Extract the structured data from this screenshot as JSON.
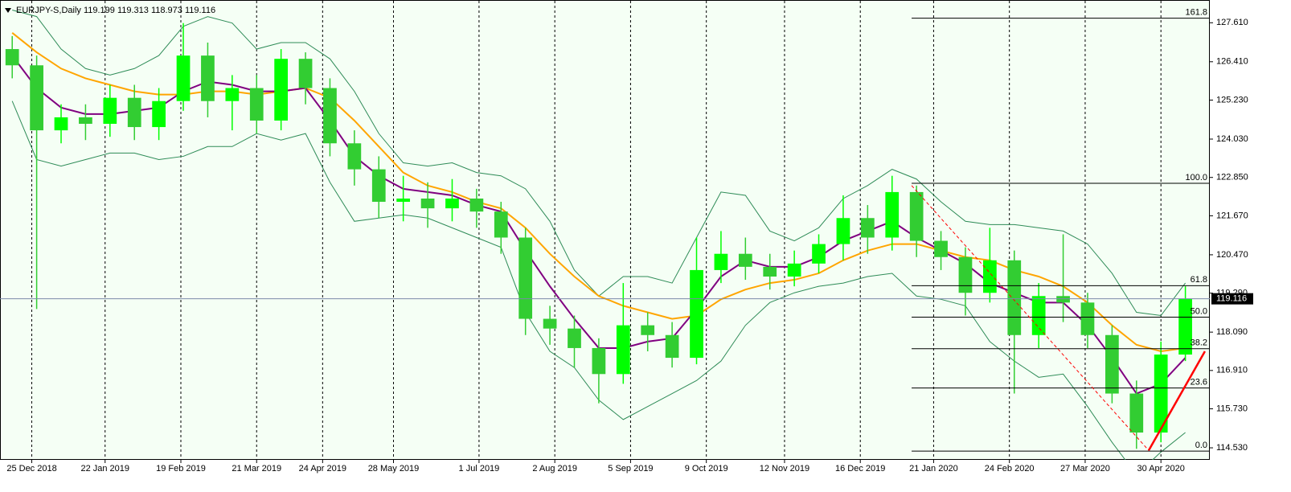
{
  "chart_data": {
    "type": "candlestick",
    "title": "EURJPY-S,Daily  119.199 119.313 118.973 119.116",
    "open": [
      126.8,
      126.3,
      124.3,
      124.7,
      124.5,
      125.3,
      124.4,
      125.2,
      126.6,
      125.2,
      125.6,
      124.6,
      126.5,
      125.6,
      123.9,
      123.1,
      122.1,
      122.2,
      121.9,
      122.2,
      121.8,
      121.0,
      118.5,
      118.2,
      117.6,
      116.8,
      118.3,
      118.0,
      117.3,
      120.0,
      120.5,
      120.1,
      119.8,
      120.2,
      120.8,
      121.6,
      121.0,
      122.4,
      120.9,
      120.4,
      119.3,
      120.3,
      118.0,
      119.2,
      119.0,
      118.0,
      116.2,
      115.0,
      117.4
    ],
    "high": [
      127.2,
      126.6,
      125.1,
      125.1,
      125.7,
      125.7,
      125.6,
      127.6,
      127.0,
      126.0,
      126.0,
      126.8,
      126.7,
      125.9,
      124.3,
      123.5,
      122.9,
      122.7,
      122.8,
      122.5,
      122.1,
      121.3,
      118.9,
      118.6,
      117.9,
      119.6,
      118.7,
      118.4,
      121.0,
      121.2,
      121.0,
      120.5,
      120.6,
      121.1,
      122.3,
      122.0,
      122.9,
      122.6,
      121.2,
      120.7,
      121.3,
      120.6,
      119.6,
      121.1,
      119.3,
      118.3,
      116.6,
      117.8,
      119.5
    ],
    "low": [
      125.9,
      118.8,
      123.9,
      124.0,
      124.1,
      124.0,
      124.0,
      124.9,
      124.7,
      124.3,
      124.2,
      124.3,
      125.1,
      123.5,
      122.6,
      121.6,
      121.5,
      121.3,
      121.5,
      121.3,
      120.5,
      118.0,
      117.7,
      117.0,
      115.9,
      116.5,
      117.5,
      117.0,
      117.1,
      119.6,
      119.7,
      119.4,
      119.5,
      119.9,
      120.3,
      120.5,
      120.6,
      120.4,
      120.0,
      118.6,
      119.0,
      116.2,
      117.6,
      118.4,
      117.6,
      115.9,
      114.5,
      114.7,
      117.2
    ],
    "close": [
      126.3,
      124.3,
      124.7,
      124.5,
      125.3,
      124.4,
      125.2,
      126.6,
      125.2,
      125.6,
      124.6,
      126.5,
      125.6,
      123.9,
      123.1,
      122.1,
      122.2,
      121.9,
      122.2,
      121.8,
      121.0,
      118.5,
      118.2,
      117.6,
      116.8,
      118.3,
      118.0,
      117.3,
      120.0,
      120.5,
      120.1,
      119.8,
      120.2,
      120.8,
      121.6,
      121.0,
      122.4,
      120.9,
      120.4,
      119.3,
      120.3,
      118.0,
      119.2,
      119.0,
      118.0,
      116.2,
      115.0,
      117.4,
      119.116
    ],
    "up_color": "#00ff00",
    "down_color": "#32cd32",
    "indicators": [
      {
        "color": "#2e8b57",
        "values": [
          128.0,
          127.8,
          126.8,
          126.2,
          126.0,
          126.2,
          126.6,
          127.5,
          127.8,
          127.6,
          126.8,
          127.0,
          127.0,
          126.5,
          125.5,
          124.2,
          123.3,
          123.2,
          123.3,
          123.0,
          122.9,
          122.5,
          121.5,
          120.0,
          119.2,
          119.8,
          119.8,
          119.6,
          121.0,
          122.4,
          122.3,
          121.2,
          120.9,
          121.3,
          122.2,
          122.6,
          123.1,
          122.8,
          122.1,
          121.5,
          121.4,
          121.4,
          121.3,
          121.2,
          120.8,
          119.9,
          118.7,
          118.6,
          119.6
        ]
      },
      {
        "color": "#2e8b57",
        "values": [
          125.2,
          123.4,
          123.2,
          123.4,
          123.6,
          123.6,
          123.4,
          123.5,
          123.8,
          123.8,
          124.2,
          124.0,
          124.2,
          122.7,
          121.5,
          121.6,
          121.7,
          121.6,
          121.3,
          121.0,
          120.7,
          118.7,
          117.5,
          117.0,
          116.0,
          115.4,
          115.8,
          116.2,
          116.6,
          117.2,
          118.3,
          119.0,
          119.3,
          119.5,
          119.6,
          119.8,
          119.9,
          119.2,
          119.1,
          118.9,
          117.8,
          117.2,
          116.7,
          116.8,
          115.8,
          114.7,
          113.7,
          114.4,
          115.0
        ]
      },
      {
        "color": "#ffa500",
        "values": [
          127.3,
          126.7,
          126.2,
          125.9,
          125.7,
          125.5,
          125.4,
          125.4,
          125.5,
          125.5,
          125.4,
          125.5,
          125.6,
          125.3,
          124.6,
          123.8,
          123.0,
          122.6,
          122.4,
          122.1,
          121.9,
          121.3,
          120.5,
          119.8,
          119.2,
          118.9,
          118.7,
          118.5,
          118.6,
          119.1,
          119.4,
          119.6,
          119.7,
          119.9,
          120.3,
          120.6,
          120.8,
          120.8,
          120.6,
          120.4,
          120.3,
          120.0,
          119.8,
          119.5,
          119.0,
          118.3,
          117.7,
          117.5,
          117.6
        ]
      },
      {
        "color": "#800080",
        "values": [
          126.6,
          125.6,
          125.0,
          124.8,
          124.8,
          124.9,
          125.0,
          125.5,
          125.8,
          125.7,
          125.5,
          125.5,
          125.6,
          124.6,
          123.5,
          122.9,
          122.5,
          122.4,
          122.3,
          122.0,
          121.8,
          120.6,
          119.5,
          118.5,
          117.6,
          117.6,
          117.8,
          117.9,
          118.8,
          119.8,
          120.3,
          120.1,
          120.1,
          120.4,
          120.9,
          121.2,
          121.5,
          121.0,
          120.6,
          120.2,
          119.6,
          119.3,
          119.0,
          119.0,
          118.3,
          117.3,
          116.2,
          116.5,
          117.3
        ]
      }
    ],
    "xlim": [
      -0.5,
      49
    ],
    "xticks": [
      {
        "value": 0.8,
        "label": "25 Dec 2018"
      },
      {
        "value": 3.8,
        "label": "22 Jan 2019"
      },
      {
        "value": 6.9,
        "label": "19 Feb 2019"
      },
      {
        "value": 10.0,
        "label": "21 Mar 2019"
      },
      {
        "value": 12.7,
        "label": "24 Apr 2019"
      },
      {
        "value": 15.6,
        "label": "28 May 2019"
      },
      {
        "value": 19.1,
        "label": "1 Jul 2019"
      },
      {
        "value": 22.2,
        "label": "2 Aug 2019"
      },
      {
        "value": 25.3,
        "label": "5 Sep 2019"
      },
      {
        "value": 28.4,
        "label": "9 Oct 2019"
      },
      {
        "value": 31.6,
        "label": "12 Nov 2019"
      },
      {
        "value": 34.7,
        "label": "16 Dec 2019"
      },
      {
        "value": 37.7,
        "label": "21 Jan 2020"
      },
      {
        "value": 40.8,
        "label": "24 Feb 2020"
      },
      {
        "value": 43.9,
        "label": "27 Mar 2020"
      },
      {
        "value": 47.0,
        "label": "30 Apr 2020"
      }
    ],
    "ylim": [
      114.16,
      128.31
    ],
    "yticks": [
      {
        "value": 127.61,
        "label": "127.610"
      },
      {
        "value": 126.41,
        "label": "126.410"
      },
      {
        "value": 125.23,
        "label": "125.230"
      },
      {
        "value": 124.03,
        "label": "124.030"
      },
      {
        "value": 122.85,
        "label": "122.850"
      },
      {
        "value": 121.67,
        "label": "121.670"
      },
      {
        "value": 120.47,
        "label": "120.470"
      },
      {
        "value": 119.29,
        "label": "119.290"
      },
      {
        "value": 118.09,
        "label": "118.090"
      },
      {
        "value": 116.91,
        "label": "116.910"
      },
      {
        "value": 115.73,
        "label": "115.730"
      },
      {
        "value": 114.53,
        "label": "114.530"
      }
    ],
    "last_price": {
      "value": 119.116,
      "label": "119.116"
    },
    "fib_levels": [
      {
        "value": 127.75,
        "label": "161.8"
      },
      {
        "value": 122.67,
        "label": "100.0"
      },
      {
        "value": 119.52,
        "label": "61.8"
      },
      {
        "value": 118.55,
        "label": "50.0"
      },
      {
        "value": 117.58,
        "label": "38.2"
      },
      {
        "value": 116.37,
        "label": "23.6"
      },
      {
        "value": 114.43,
        "label": "0.0"
      }
    ],
    "dashed_line": {
      "x": [
        36.8,
        46.5
      ],
      "y": [
        122.6,
        114.45
      ]
    },
    "trend_line": {
      "x": [
        46.5,
        48.8
      ],
      "y": [
        114.45,
        117.5
      ]
    }
  }
}
